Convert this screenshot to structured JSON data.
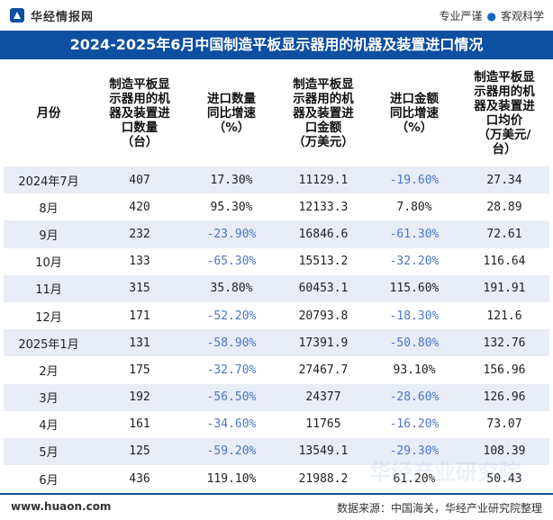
{
  "header": {
    "site_name": "华经情报网",
    "slogan_left": "专业严谨",
    "slogan_sep": "●",
    "slogan_right": "客观科学"
  },
  "title": "2024-2025年6月中国制造平板显示器用的机器及装置进口情况",
  "table": {
    "columns": [
      "月份",
      "制造平板显\n示器用的机\n器及装置进\n口数量\n（台）",
      "进口数量\n同比增速\n（%）",
      "制造平板显\n示器用的机\n器及装置进\n口金额\n（万美元）",
      "进口金额\n同比增速\n（%）",
      "制造平板显\n示器用的机\n器及装置进\n口均价\n（万美元/\n台）"
    ],
    "rows": [
      [
        "2024年7月",
        "407",
        "17.30%",
        "11129.1",
        "-19.60%",
        "27.34"
      ],
      [
        "8月",
        "420",
        "95.30%",
        "12133.3",
        "7.80%",
        "28.89"
      ],
      [
        "9月",
        "232",
        "-23.90%",
        "16846.6",
        "-61.30%",
        "72.61"
      ],
      [
        "10月",
        "133",
        "-65.30%",
        "15513.2",
        "-32.20%",
        "116.64"
      ],
      [
        "11月",
        "315",
        "35.80%",
        "60453.1",
        "115.60%",
        "191.91"
      ],
      [
        "12月",
        "171",
        "-52.20%",
        "20793.8",
        "-18.30%",
        "121.6"
      ],
      [
        "2025年1月",
        "131",
        "-58.90%",
        "17391.9",
        "-50.80%",
        "132.76"
      ],
      [
        "2月",
        "175",
        "-32.70%",
        "27467.7",
        "93.10%",
        "156.96"
      ],
      [
        "3月",
        "192",
        "-56.50%",
        "24377",
        "-28.60%",
        "126.96"
      ],
      [
        "4月",
        "161",
        "-34.60%",
        "11765",
        "-16.20%",
        "73.07"
      ],
      [
        "5月",
        "125",
        "-59.20%",
        "13549.1",
        "-29.30%",
        "108.39"
      ],
      [
        "6月",
        "436",
        "119.10%",
        "21988.2",
        "61.20%",
        "50.43"
      ]
    ]
  },
  "footer": {
    "url": "www.huaon.com",
    "source": "数据来源：中国海关，华经产业研究院整理"
  },
  "colors": {
    "title_bg": "#0d4fa1",
    "stripe": "#e8ecf6",
    "negative": "#4a76c9"
  }
}
